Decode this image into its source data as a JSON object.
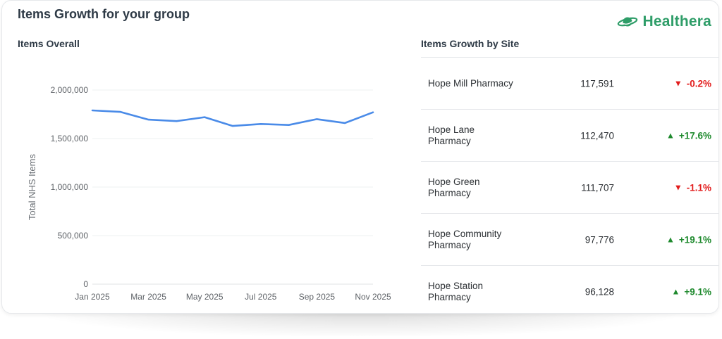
{
  "header": {
    "title": "Items Growth for your group",
    "brand": "Healthera"
  },
  "colors": {
    "line": "#4a8be8",
    "up": "#1f8a2e",
    "down": "#e21c1c",
    "brand": "#2e9d68"
  },
  "icons": {
    "brand_logo": "planet-logo-icon",
    "up": "triangle-up-icon",
    "down": "triangle-down-icon"
  },
  "chart_section": {
    "title": "Items Overall"
  },
  "chart_data": {
    "type": "line",
    "title": "Items Overall",
    "xlabel": "",
    "ylabel": "Total NHS Items",
    "x": [
      "Jan 2025",
      "Feb 2025",
      "Mar 2025",
      "Apr 2025",
      "May 2025",
      "Jun 2025",
      "Jul 2025",
      "Aug 2025",
      "Sep 2025",
      "Oct 2025",
      "Nov 2025"
    ],
    "x_tick_labels": [
      "Jan 2025",
      "Mar 2025",
      "May 2025",
      "Jul 2025",
      "Sep 2025",
      "Nov 2025"
    ],
    "series": [
      {
        "values": [
          1790000,
          1775000,
          1695000,
          1680000,
          1720000,
          1630000,
          1650000,
          1640000,
          1700000,
          1660000,
          1770000
        ]
      }
    ],
    "ylim": [
      0,
      2000000
    ],
    "y_ticks": [
      0,
      500000,
      1000000,
      1500000,
      2000000
    ],
    "y_tick_labels": [
      "0",
      "500,000",
      "1,000,000",
      "1,500,000",
      "2,000,000"
    ],
    "grid": true
  },
  "table_section": {
    "title": "Items Growth by Site"
  },
  "sites": [
    {
      "name": "Hope Mill Pharmacy",
      "value": "117,591",
      "growth": "-0.2%",
      "direction": "down"
    },
    {
      "name": "Hope Lane Pharmacy",
      "value": "112,470",
      "growth": "+17.6%",
      "direction": "up"
    },
    {
      "name": "Hope Green Pharmacy",
      "value": "111,707",
      "growth": "-1.1%",
      "direction": "down"
    },
    {
      "name": "Hope Community Pharmacy",
      "value": "97,776",
      "growth": "+19.1%",
      "direction": "up"
    },
    {
      "name": "Hope Station Pharmacy",
      "value": "96,128",
      "growth": "+9.1%",
      "direction": "up"
    }
  ]
}
